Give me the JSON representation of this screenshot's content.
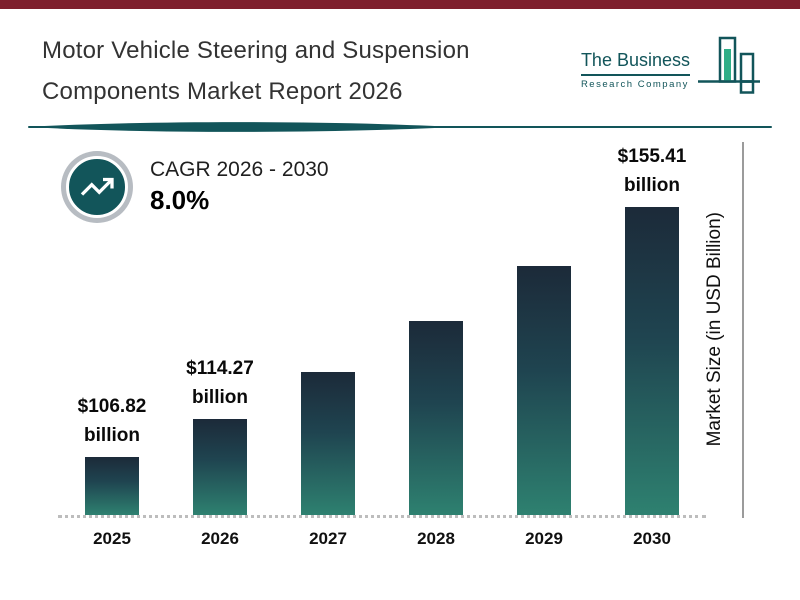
{
  "header": {
    "title_line1": "Motor Vehicle Steering and Suspension",
    "title_line2": "Components Market Report 2026"
  },
  "logo": {
    "name": "The Business",
    "subname": "Research Company"
  },
  "cagr": {
    "label": "CAGR 2026 - 2030",
    "value": "8.0%"
  },
  "chart_data": {
    "type": "bar",
    "title": "Motor Vehicle Steering and Suspension Components Market Report 2026",
    "categories": [
      "2025",
      "2026",
      "2027",
      "2028",
      "2029",
      "2030"
    ],
    "values": [
      106.82,
      114.27,
      123.41,
      133.29,
      143.95,
      155.41
    ],
    "bar_labels": [
      "$106.82 billion",
      "$114.27 billion",
      null,
      null,
      null,
      "$155.41 billion"
    ],
    "xlabel": "",
    "ylabel": "Market Size (in USD Billion)",
    "legend": false,
    "grid": false,
    "colors": {
      "bar_gradient_top": "#1c2a39",
      "bar_gradient_bottom": "#2e8170"
    }
  },
  "colors": {
    "accent_teal": "#12555a",
    "top_strip": "#7e1f2d",
    "logo_green": "#2fae87",
    "ring_gray": "#b7bcc2"
  }
}
